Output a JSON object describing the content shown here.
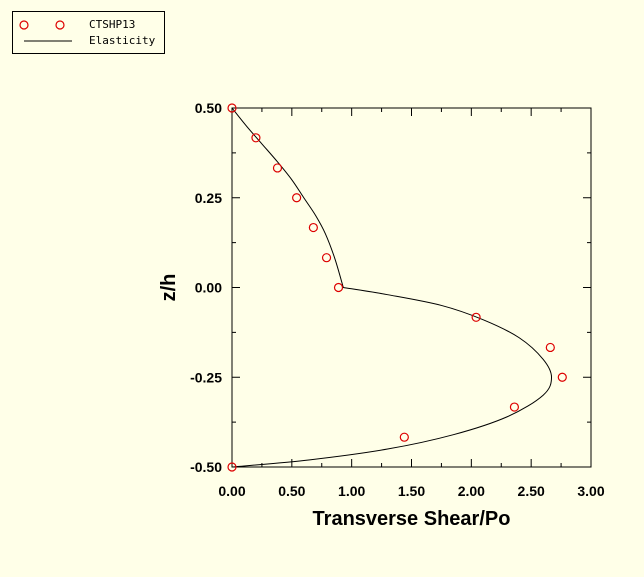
{
  "chart_data": {
    "type": "line",
    "title": "",
    "xlabel": "Transverse Shear/Po",
    "ylabel": "z/h",
    "xlim": [
      0,
      3
    ],
    "ylim": [
      -0.5,
      0.5
    ],
    "x_ticks": [
      "0.00",
      "0.50",
      "1.00",
      "1.50",
      "2.00",
      "2.50",
      "3.00"
    ],
    "y_ticks": [
      "0.50",
      "0.25",
      "0.00",
      "-0.25",
      "-0.50"
    ],
    "grid": false,
    "legend_position": "top-left",
    "series": [
      {
        "name": "CTSHP13",
        "kind": "markers",
        "color": "#dd0000",
        "x": [
          0.0,
          0.2,
          0.38,
          0.54,
          0.68,
          0.79,
          0.89,
          2.04,
          2.66,
          2.76,
          2.36,
          1.44,
          0.0
        ],
        "y": [
          0.5,
          0.417,
          0.333,
          0.25,
          0.167,
          0.083,
          0.0,
          -0.083,
          -0.167,
          -0.25,
          -0.333,
          -0.417,
          -0.5
        ]
      },
      {
        "name": "Elasticity",
        "kind": "line",
        "color": "#000000",
        "x": [
          0.0,
          0.12,
          0.25,
          0.38,
          0.5,
          0.6,
          0.7,
          0.78,
          0.86,
          0.93,
          1.3,
          1.75,
          2.1,
          2.4,
          2.6,
          2.67,
          2.6,
          2.3,
          1.85,
          1.3,
          0.65,
          0.0
        ],
        "y": [
          0.5,
          0.45,
          0.4,
          0.35,
          0.3,
          0.25,
          0.2,
          0.15,
          0.08,
          0.0,
          -0.02,
          -0.05,
          -0.09,
          -0.14,
          -0.2,
          -0.25,
          -0.3,
          -0.36,
          -0.41,
          -0.45,
          -0.48,
          -0.5
        ]
      }
    ]
  }
}
